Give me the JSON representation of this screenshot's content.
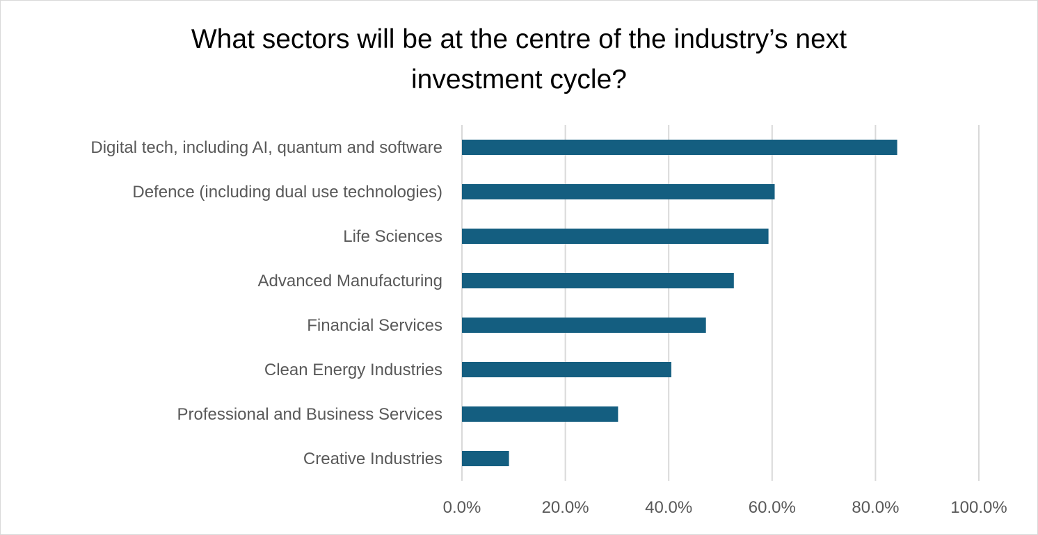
{
  "chart_data": {
    "type": "bar",
    "orientation": "horizontal",
    "title_lines": [
      "What sectors will be at the centre of the industry’s next",
      "investment cycle?"
    ],
    "categories": [
      "Digital tech, including AI, quantum and software",
      "Defence (including dual use technologies)",
      "Life Sciences",
      "Advanced Manufacturing",
      "Financial Services",
      "Clean Energy Industries",
      "Professional and Business Services",
      "Creative Industries"
    ],
    "values": [
      84.2,
      60.5,
      59.3,
      52.6,
      47.2,
      40.5,
      30.2,
      9.1
    ],
    "xlim": [
      0,
      100
    ],
    "xticks": [
      0,
      20,
      40,
      60,
      80,
      100
    ],
    "xtick_labels": [
      "0.0%",
      "20.0%",
      "40.0%",
      "60.0%",
      "80.0%",
      "100.0%"
    ],
    "grid": "vertical",
    "legend": "none",
    "bar_color": "#145e80",
    "grid_color": "#d9d9d9",
    "label_color": "#595959"
  }
}
